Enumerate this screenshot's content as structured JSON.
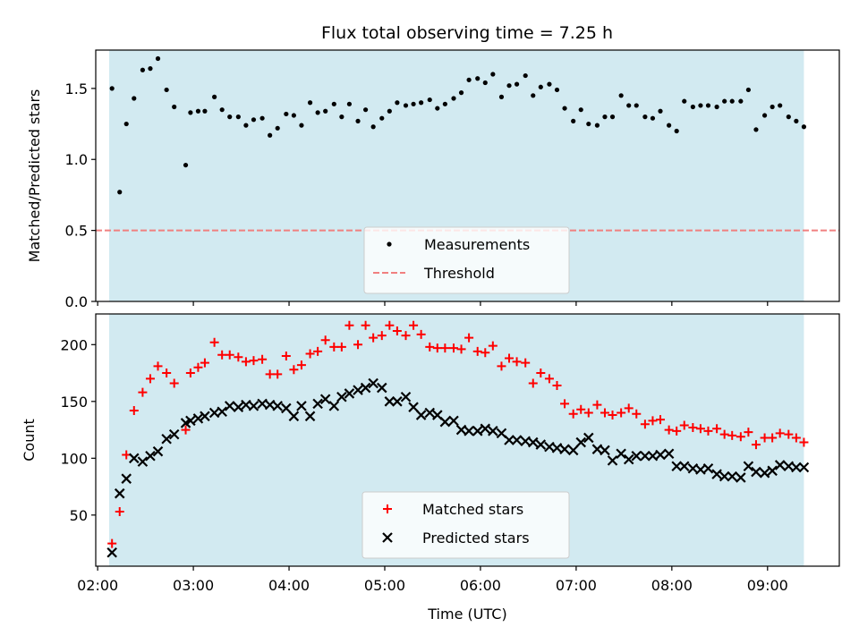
{
  "title": "Flux total observing time = 7.25 h",
  "chart_data": [
    {
      "type": "scatter",
      "ylabel": "Matched/Predicted stars",
      "ylim": [
        0,
        1.77
      ],
      "xlim": [
        1.98,
        9.75
      ],
      "y_ticks": [
        0.0,
        0.5,
        1.0,
        1.5
      ],
      "y_tick_labels": [
        "0.0",
        "0.5",
        "1.0",
        "1.5"
      ],
      "shaded_span": [
        2.12,
        9.38
      ],
      "shade_color": "#add8e6",
      "threshold": 0.5,
      "threshold_color": "#f08080",
      "legend_position": "lower center",
      "series": [
        {
          "name": "Measurements",
          "color": "#000000",
          "marker": "dot",
          "x": [
            2.15,
            2.23,
            2.3,
            2.38,
            2.47,
            2.55,
            2.63,
            2.72,
            2.8,
            2.92,
            2.97,
            3.05,
            3.12,
            3.22,
            3.3,
            3.38,
            3.47,
            3.55,
            3.63,
            3.72,
            3.8,
            3.88,
            3.97,
            4.05,
            4.13,
            4.22,
            4.3,
            4.38,
            4.47,
            4.55,
            4.63,
            4.72,
            4.8,
            4.88,
            4.97,
            5.05,
            5.13,
            5.22,
            5.3,
            5.38,
            5.47,
            5.55,
            5.63,
            5.72,
            5.8,
            5.88,
            5.97,
            6.05,
            6.13,
            6.22,
            6.3,
            6.38,
            6.47,
            6.55,
            6.63,
            6.72,
            6.8,
            6.88,
            6.97,
            7.05,
            7.13,
            7.22,
            7.3,
            7.38,
            7.47,
            7.55,
            7.63,
            7.72,
            7.8,
            7.88,
            7.97,
            8.05,
            8.13,
            8.22,
            8.3,
            8.38,
            8.47,
            8.55,
            8.63,
            8.72,
            8.8,
            8.88,
            8.97,
            9.05,
            9.13,
            9.22,
            9.3,
            9.38
          ],
          "y": [
            1.5,
            0.77,
            1.25,
            1.43,
            1.63,
            1.64,
            1.71,
            1.49,
            1.37,
            0.96,
            1.33,
            1.34,
            1.34,
            1.44,
            1.35,
            1.3,
            1.3,
            1.24,
            1.28,
            1.29,
            1.17,
            1.22,
            1.32,
            1.31,
            1.24,
            1.4,
            1.33,
            1.34,
            1.39,
            1.3,
            1.39,
            1.27,
            1.35,
            1.23,
            1.29,
            1.34,
            1.4,
            1.38,
            1.39,
            1.4,
            1.42,
            1.36,
            1.39,
            1.43,
            1.47,
            1.56,
            1.57,
            1.54,
            1.6,
            1.44,
            1.52,
            1.53,
            1.59,
            1.45,
            1.51,
            1.53,
            1.49,
            1.36,
            1.27,
            1.35,
            1.25,
            1.24,
            1.3,
            1.3,
            1.45,
            1.38,
            1.38,
            1.3,
            1.29,
            1.34,
            1.24,
            1.2,
            1.41,
            1.37,
            1.38,
            1.38,
            1.37,
            1.41,
            1.41,
            1.41,
            1.49,
            1.21,
            1.31,
            1.37,
            1.38,
            1.3,
            1.27,
            1.23
          ]
        }
      ]
    },
    {
      "type": "scatter",
      "ylabel": "Count",
      "xlabel": "Time (UTC)",
      "ylim": [
        5,
        227
      ],
      "xlim": [
        1.98,
        9.75
      ],
      "y_ticks": [
        50,
        100,
        150,
        200
      ],
      "y_tick_labels": [
        "50",
        "100",
        "150",
        "200"
      ],
      "x_ticks": [
        2,
        3,
        4,
        5,
        6,
        7,
        8,
        9
      ],
      "x_tick_labels": [
        "02:00",
        "03:00",
        "04:00",
        "05:00",
        "06:00",
        "07:00",
        "08:00",
        "09:00"
      ],
      "shaded_span": [
        2.12,
        9.38
      ],
      "shade_color": "#add8e6",
      "legend_position": "lower center",
      "series": [
        {
          "name": "Matched stars",
          "color": "#ff0000",
          "marker": "plus",
          "x": [
            2.15,
            2.23,
            2.3,
            2.38,
            2.47,
            2.55,
            2.63,
            2.72,
            2.8,
            2.92,
            2.97,
            3.05,
            3.12,
            3.22,
            3.3,
            3.38,
            3.47,
            3.55,
            3.63,
            3.72,
            3.8,
            3.88,
            3.97,
            4.05,
            4.13,
            4.22,
            4.3,
            4.38,
            4.47,
            4.55,
            4.63,
            4.72,
            4.8,
            4.88,
            4.97,
            5.05,
            5.13,
            5.22,
            5.3,
            5.38,
            5.47,
            5.55,
            5.63,
            5.72,
            5.8,
            5.88,
            5.97,
            6.05,
            6.13,
            6.22,
            6.3,
            6.38,
            6.47,
            6.55,
            6.63,
            6.72,
            6.8,
            6.88,
            6.97,
            7.05,
            7.13,
            7.22,
            7.3,
            7.38,
            7.47,
            7.55,
            7.63,
            7.72,
            7.8,
            7.88,
            7.97,
            8.05,
            8.13,
            8.22,
            8.3,
            8.38,
            8.47,
            8.55,
            8.63,
            8.72,
            8.8,
            8.88,
            8.97,
            9.05,
            9.13,
            9.22,
            9.3,
            9.38
          ],
          "y": [
            25,
            53,
            103,
            142,
            158,
            170,
            181,
            175,
            166,
            125,
            175,
            180,
            184,
            202,
            191,
            191,
            189,
            185,
            186,
            187,
            174,
            174,
            190,
            178,
            182,
            192,
            194,
            204,
            198,
            198,
            217,
            200,
            217,
            206,
            208,
            217,
            212,
            208,
            217,
            209,
            198,
            197,
            197,
            197,
            196,
            206,
            194,
            193,
            199,
            181,
            188,
            185,
            184,
            166,
            175,
            170,
            164,
            148,
            139,
            143,
            140,
            147,
            140,
            138,
            140,
            144,
            139,
            130,
            133,
            134,
            125,
            124,
            129,
            127,
            126,
            124,
            126,
            121,
            120,
            119,
            123,
            112,
            118,
            118,
            122,
            121,
            118,
            114
          ]
        },
        {
          "name": "Predicted stars",
          "color": "#000000",
          "marker": "x",
          "x": [
            2.15,
            2.23,
            2.3,
            2.38,
            2.47,
            2.55,
            2.63,
            2.72,
            2.8,
            2.92,
            2.97,
            3.05,
            3.12,
            3.22,
            3.3,
            3.38,
            3.47,
            3.55,
            3.63,
            3.72,
            3.8,
            3.88,
            3.97,
            4.05,
            4.13,
            4.22,
            4.3,
            4.38,
            4.47,
            4.55,
            4.63,
            4.72,
            4.8,
            4.88,
            4.97,
            5.05,
            5.13,
            5.22,
            5.3,
            5.38,
            5.47,
            5.55,
            5.63,
            5.72,
            5.8,
            5.88,
            5.97,
            6.05,
            6.13,
            6.22,
            6.3,
            6.38,
            6.47,
            6.55,
            6.63,
            6.72,
            6.8,
            6.88,
            6.97,
            7.05,
            7.13,
            7.22,
            7.3,
            7.38,
            7.47,
            7.55,
            7.63,
            7.72,
            7.8,
            7.88,
            7.97,
            8.05,
            8.13,
            8.22,
            8.3,
            8.38,
            8.47,
            8.55,
            8.63,
            8.72,
            8.8,
            8.88,
            8.97,
            9.05,
            9.13,
            9.22,
            9.3,
            9.38
          ],
          "y": [
            17,
            69,
            82,
            100,
            97,
            102,
            106,
            117,
            121,
            131,
            133,
            135,
            137,
            140,
            141,
            146,
            145,
            147,
            146,
            148,
            147,
            146,
            144,
            137,
            146,
            137,
            148,
            152,
            146,
            154,
            157,
            160,
            162,
            166,
            162,
            150,
            150,
            154,
            145,
            138,
            140,
            138,
            132,
            133,
            125,
            124,
            124,
            126,
            124,
            122,
            116,
            116,
            115,
            114,
            112,
            110,
            109,
            108,
            107,
            114,
            118,
            108,
            107,
            98,
            104,
            99,
            102,
            102,
            102,
            103,
            104,
            93,
            93,
            91,
            90,
            91,
            86,
            84,
            84,
            83,
            93,
            88,
            87,
            89,
            94,
            93,
            92,
            92
          ]
        }
      ]
    }
  ]
}
